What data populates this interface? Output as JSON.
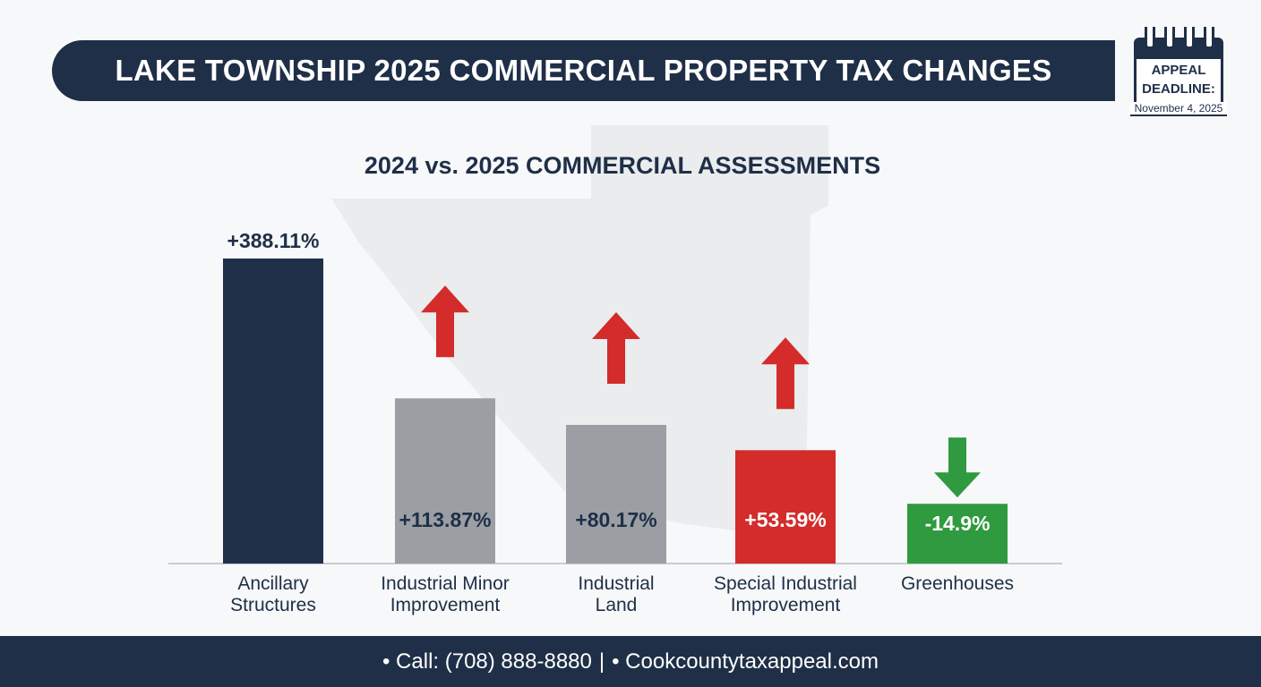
{
  "header": {
    "title": "LAKE TOWNSHIP 2025 COMMERCIAL PROPERTY TAX CHANGES"
  },
  "deadline": {
    "label_line1": "APPEAL",
    "label_line2": "DEADLINE:",
    "date": "November 4, 2025"
  },
  "chart_data": {
    "type": "bar",
    "title": "2024 vs. 2025 COMMERCIAL ASSESSMENTS",
    "categories": [
      [
        "Ancillary",
        "Structures"
      ],
      [
        "Industrial Minor",
        "Improvement"
      ],
      [
        "Industrial",
        "Land"
      ],
      [
        "Special Industrial",
        "Improvement"
      ],
      [
        "Greenhouses"
      ]
    ],
    "values": [
      388.11,
      113.87,
      80.17,
      53.59,
      -14.9
    ],
    "labels": [
      "+388.11%",
      "+113.87%",
      "+80.17%",
      "+53.59%",
      "-14.9%"
    ],
    "colors": [
      "#1f2f48",
      "#9b9fa4",
      "#d42b2b",
      "#d42b2b",
      "#2f9a3f"
    ],
    "bar_colors": [
      "#1f2f48",
      "#9b9fa4",
      "#9b9fa4",
      "#d42b2b",
      "#2f9a3f"
    ],
    "arrows": [
      "none",
      "up",
      "up",
      "up",
      "down"
    ],
    "xlabel": "",
    "ylabel": "",
    "grid": false
  },
  "footer": {
    "phone": "• Call: (708) 888-8880",
    "separator": "|",
    "website": "• Cookcountytaxappeal.com"
  }
}
